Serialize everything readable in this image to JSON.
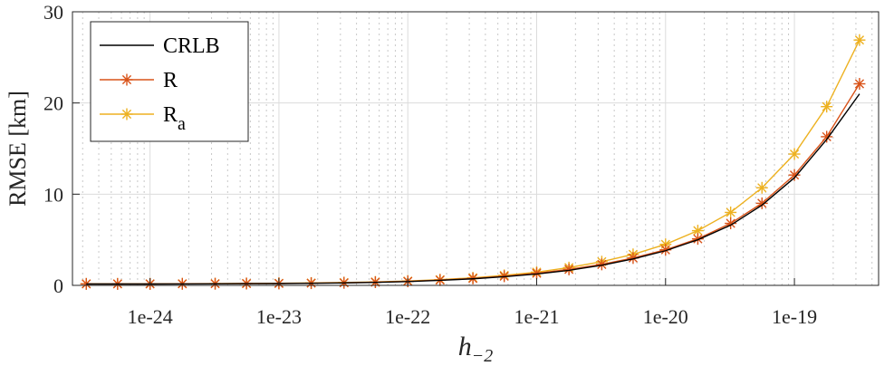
{
  "chart_data": {
    "type": "line",
    "xlabel": "h",
    "xlabel_sub": "−2",
    "ylabel": "RMSE [km]",
    "xscale": "log",
    "xlim": [
      2.5e-25,
      4.5e-19
    ],
    "ylim": [
      0,
      30
    ],
    "xticks": [
      1e-24,
      1e-23,
      1e-22,
      1e-21,
      1e-20,
      1e-19
    ],
    "xtick_labels": [
      "1e-24",
      "1e-23",
      "1e-22",
      "1e-21",
      "1e-20",
      "1e-19"
    ],
    "yticks": [
      0,
      10,
      20,
      30
    ],
    "ytick_labels": [
      "0",
      "10",
      "20",
      "30"
    ],
    "grid": true,
    "legend_position": "top-left",
    "x": [
      3.2e-25,
      5.6e-25,
      1e-24,
      1.78e-24,
      3.2e-24,
      5.6e-24,
      1e-23,
      1.78e-23,
      3.2e-23,
      5.6e-23,
      1e-22,
      1.78e-22,
      3.2e-22,
      5.6e-22,
      1e-21,
      1.78e-21,
      3.2e-21,
      5.6e-21,
      1e-20,
      1.78e-20,
      3.2e-20,
      5.6e-20,
      1e-19,
      1.78e-19,
      3.2e-19
    ],
    "series": [
      {
        "name": "CRLB",
        "color": "#000000",
        "marker": "none",
        "values": [
          0.15,
          0.15,
          0.15,
          0.16,
          0.17,
          0.19,
          0.2,
          0.23,
          0.27,
          0.33,
          0.42,
          0.55,
          0.72,
          0.95,
          1.25,
          1.65,
          2.2,
          2.9,
          3.8,
          5.0,
          6.6,
          8.8,
          11.8,
          16.0,
          21.0
        ]
      },
      {
        "name": "R",
        "color": "#D95319",
        "marker": "asterisk",
        "values": [
          0.16,
          0.16,
          0.16,
          0.17,
          0.18,
          0.2,
          0.21,
          0.24,
          0.28,
          0.35,
          0.44,
          0.58,
          0.76,
          1.0,
          1.32,
          1.75,
          2.3,
          3.0,
          3.9,
          5.1,
          6.8,
          9.0,
          12.1,
          16.3,
          22.1
        ]
      },
      {
        "name": "R",
        "name_sub": "a",
        "color": "#EDB120",
        "marker": "asterisk",
        "values": [
          0.17,
          0.17,
          0.17,
          0.18,
          0.19,
          0.21,
          0.23,
          0.26,
          0.31,
          0.38,
          0.48,
          0.63,
          0.83,
          1.1,
          1.45,
          1.95,
          2.6,
          3.4,
          4.5,
          6.0,
          8.0,
          10.7,
          14.4,
          19.6,
          26.9
        ]
      }
    ]
  }
}
